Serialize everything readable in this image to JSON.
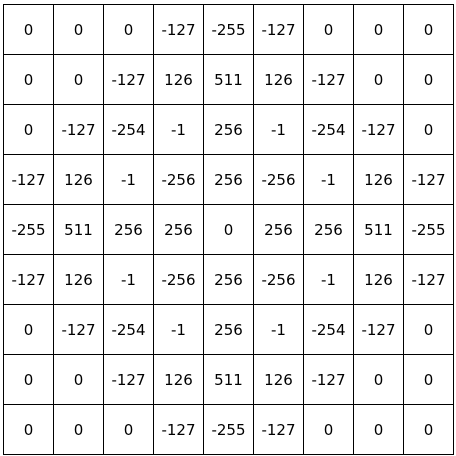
{
  "matrix": {
    "rows": [
      [
        "0",
        "0",
        "0",
        "-127",
        "-255",
        "-127",
        "0",
        "0",
        "0"
      ],
      [
        "0",
        "0",
        "-127",
        "126",
        "511",
        "126",
        "-127",
        "0",
        "0"
      ],
      [
        "0",
        "-127",
        "-254",
        "-1",
        "256",
        "-1",
        "-254",
        "-127",
        "0"
      ],
      [
        "-127",
        "126",
        "-1",
        "-256",
        "256",
        "-256",
        "-1",
        "126",
        "-127"
      ],
      [
        "-255",
        "511",
        "256",
        "256",
        "0",
        "256",
        "256",
        "511",
        "-255"
      ],
      [
        "-127",
        "126",
        "-1",
        "-256",
        "256",
        "-256",
        "-1",
        "126",
        "-127"
      ],
      [
        "0",
        "-127",
        "-254",
        "-1",
        "256",
        "-1",
        "-254",
        "-127",
        "0"
      ],
      [
        "0",
        "0",
        "-127",
        "126",
        "511",
        "126",
        "-127",
        "0",
        "0"
      ],
      [
        "0",
        "0",
        "0",
        "-127",
        "-255",
        "-127",
        "0",
        "0",
        "0"
      ]
    ]
  }
}
